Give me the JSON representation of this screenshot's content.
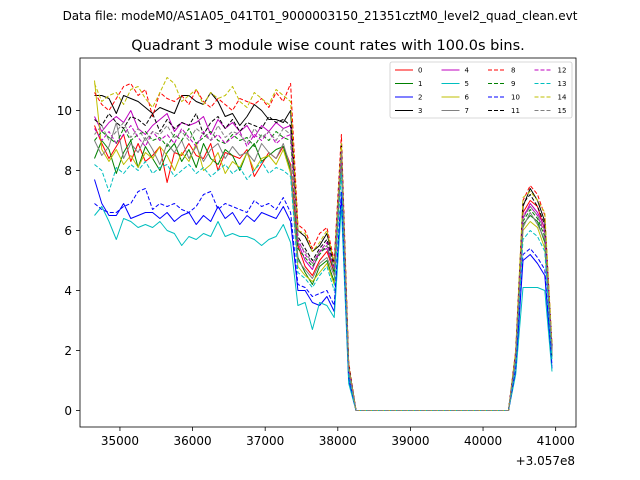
{
  "suptitle": "Data file: modeM0/AS1A05_041T01_9000003150_21351cztM0_level2_quad_clean.evt",
  "chart_data": {
    "type": "line",
    "title": "Quadrant 3 module wise count rates with 100.0s bins.",
    "xlabel": "",
    "ylabel": "",
    "x_offset_label": "+3.057e8",
    "xlim": [
      34450,
      41280
    ],
    "ylim": [
      -0.55,
      11.75
    ],
    "xticks": [
      35000,
      36000,
      37000,
      38000,
      39000,
      40000,
      41000
    ],
    "yticks": [
      0,
      2,
      4,
      6,
      8,
      10
    ],
    "legend_position": "top-right",
    "legend_columns": 4,
    "x": [
      34650,
      34750,
      34850,
      34950,
      35050,
      35150,
      35250,
      35350,
      35450,
      35550,
      35650,
      35750,
      35850,
      35950,
      36050,
      36150,
      36250,
      36350,
      36450,
      36550,
      36650,
      36750,
      36850,
      36950,
      37050,
      37150,
      37250,
      37350,
      37450,
      37550,
      37650,
      37750,
      37850,
      37950,
      38050,
      38150,
      38250,
      38350,
      38450,
      38550,
      38650,
      38750,
      38850,
      38950,
      39050,
      39150,
      39250,
      39350,
      39450,
      39550,
      39650,
      39750,
      39850,
      39950,
      40050,
      40150,
      40250,
      40350,
      40450,
      40550,
      40650,
      40750,
      40850,
      40950
    ],
    "series": [
      {
        "name": "0",
        "color": "#ff0000",
        "dash": false,
        "values": [
          9.5,
          8.9,
          8.4,
          8.8,
          9.2,
          8.3,
          8.9,
          8.3,
          8.5,
          8.8,
          7.6,
          8.6,
          8.5,
          8.9,
          8.5,
          8.4,
          8.9,
          8.0,
          8.6,
          8.5,
          8.4,
          8.7,
          7.8,
          8.2,
          8.6,
          8.4,
          8.8,
          8.2,
          5.5,
          4.8,
          4.5,
          5.0,
          5.3,
          4.6,
          8.8,
          1.4,
          0,
          0,
          0,
          0,
          0,
          0,
          0,
          0,
          0,
          0,
          0,
          0,
          0,
          0,
          0,
          0,
          0,
          0,
          0,
          0,
          0,
          0,
          1.8,
          6.6,
          7.0,
          6.8,
          6.0,
          2.0
        ]
      },
      {
        "name": "1",
        "color": "#008000",
        "dash": false,
        "values": [
          8.4,
          9.0,
          8.7,
          7.9,
          8.6,
          9.0,
          8.1,
          8.8,
          8.4,
          8.0,
          8.6,
          8.9,
          8.3,
          8.7,
          8.1,
          8.9,
          8.4,
          8.2,
          8.7,
          8.5,
          8.0,
          8.6,
          8.9,
          8.3,
          8.5,
          8.7,
          8.8,
          8.0,
          5.1,
          4.6,
          4.2,
          4.8,
          5.0,
          4.3,
          8.4,
          1.3,
          0,
          0,
          0,
          0,
          0,
          0,
          0,
          0,
          0,
          0,
          0,
          0,
          0,
          0,
          0,
          0,
          0,
          0,
          0,
          0,
          0,
          0,
          1.7,
          6.2,
          6.5,
          6.3,
          5.6,
          1.8
        ]
      },
      {
        "name": "2",
        "color": "#0000ff",
        "dash": false,
        "values": [
          7.7,
          6.9,
          6.5,
          6.5,
          6.9,
          6.4,
          6.5,
          6.6,
          6.6,
          6.4,
          6.6,
          6.3,
          6.5,
          6.6,
          6.2,
          6.5,
          6.3,
          6.8,
          6.4,
          6.6,
          6.2,
          6.5,
          6.3,
          6.6,
          6.5,
          6.4,
          6.8,
          6.3,
          4.0,
          4.0,
          3.6,
          3.5,
          3.8,
          3.3,
          7.1,
          1.0,
          0,
          0,
          0,
          0,
          0,
          0,
          0,
          0,
          0,
          0,
          0,
          0,
          0,
          0,
          0,
          0,
          0,
          0,
          0,
          0,
          0,
          0,
          1.3,
          5.0,
          5.2,
          4.9,
          4.5,
          1.4
        ]
      },
      {
        "name": "3",
        "color": "#000000",
        "dash": false,
        "values": [
          10.5,
          10.5,
          10.4,
          9.9,
          10.5,
          10.4,
          10.3,
          10.1,
          9.9,
          10.1,
          10.0,
          9.9,
          10.5,
          10.5,
          10.3,
          10.2,
          10.6,
          10.3,
          9.8,
          9.9,
          9.5,
          9.8,
          10.2,
          10.0,
          9.7,
          9.7,
          9.6,
          10.0,
          6.0,
          5.8,
          5.3,
          5.5,
          5.9,
          4.9,
          8.6,
          1.5,
          0,
          0,
          0,
          0,
          0,
          0,
          0,
          0,
          0,
          0,
          0,
          0,
          0,
          0,
          0,
          0,
          0,
          0,
          0,
          0,
          0,
          0,
          1.9,
          6.8,
          7.4,
          7.0,
          6.3,
          2.1
        ]
      },
      {
        "name": "4",
        "color": "#bf00bf",
        "dash": false,
        "values": [
          9.8,
          9.3,
          9.6,
          9.8,
          9.6,
          10.0,
          9.4,
          9.2,
          9.5,
          9.7,
          9.9,
          9.3,
          9.6,
          9.5,
          9.6,
          9.8,
          9.2,
          9.7,
          9.4,
          9.6,
          9.3,
          9.5,
          9.1,
          9.5,
          9.3,
          9.6,
          9.4,
          9.5,
          5.6,
          5.0,
          4.7,
          5.3,
          5.4,
          4.7,
          8.7,
          1.4,
          0,
          0,
          0,
          0,
          0,
          0,
          0,
          0,
          0,
          0,
          0,
          0,
          0,
          0,
          0,
          0,
          0,
          0,
          0,
          0,
          0,
          0,
          1.9,
          6.4,
          6.9,
          6.6,
          6.1,
          2.0
        ]
      },
      {
        "name": "5",
        "color": "#00bfbf",
        "dash": false,
        "values": [
          6.5,
          6.8,
          6.3,
          5.7,
          6.4,
          6.3,
          6.1,
          6.2,
          6.1,
          6.3,
          6.0,
          5.9,
          5.5,
          5.8,
          5.7,
          5.9,
          5.8,
          6.3,
          5.8,
          5.9,
          5.8,
          5.8,
          5.7,
          5.5,
          5.7,
          5.8,
          6.2,
          5.6,
          3.5,
          3.6,
          2.7,
          3.6,
          3.5,
          3.1,
          6.8,
          0.9,
          0,
          0,
          0,
          0,
          0,
          0,
          0,
          0,
          0,
          0,
          0,
          0,
          0,
          0,
          0,
          0,
          0,
          0,
          0,
          0,
          0,
          0,
          1.2,
          4.1,
          4.1,
          4.1,
          4.0,
          1.3
        ]
      },
      {
        "name": "6",
        "color": "#bfbf00",
        "dash": false,
        "values": [
          11.0,
          8.7,
          8.3,
          8.7,
          8.2,
          8.5,
          8.1,
          8.6,
          8.4,
          8.8,
          8.5,
          8.0,
          8.6,
          8.3,
          8.9,
          8.0,
          8.2,
          8.6,
          7.9,
          8.3,
          8.1,
          8.6,
          8.0,
          8.4,
          8.5,
          8.2,
          8.7,
          7.9,
          4.8,
          4.5,
          4.3,
          4.6,
          4.9,
          4.2,
          8.3,
          1.3,
          0,
          0,
          0,
          0,
          0,
          0,
          0,
          0,
          0,
          0,
          0,
          0,
          0,
          0,
          0,
          0,
          0,
          0,
          0,
          0,
          0,
          0,
          1.7,
          6.0,
          6.3,
          6.1,
          5.4,
          1.9
        ]
      },
      {
        "name": "7",
        "color": "#808080",
        "dash": false,
        "values": [
          9.0,
          8.5,
          8.8,
          9.6,
          8.4,
          8.9,
          8.6,
          9.1,
          8.7,
          8.2,
          8.9,
          8.6,
          9.0,
          8.4,
          8.8,
          8.3,
          8.7,
          8.9,
          8.4,
          8.8,
          8.5,
          8.6,
          8.3,
          8.9,
          8.6,
          8.4,
          8.9,
          8.1,
          5.0,
          4.7,
          4.4,
          4.9,
          5.1,
          4.5,
          8.2,
          1.3,
          0,
          0,
          0,
          0,
          0,
          0,
          0,
          0,
          0,
          0,
          0,
          0,
          0,
          0,
          0,
          0,
          0,
          0,
          0,
          0,
          0,
          0,
          1.8,
          6.1,
          6.6,
          6.2,
          5.7,
          1.9
        ]
      },
      {
        "name": "8",
        "color": "#ff0000",
        "dash": true,
        "values": [
          10.6,
          10.2,
          10.0,
          10.4,
          10.8,
          10.9,
          10.5,
          10.7,
          9.8,
          10.6,
          10.4,
          10.3,
          10.5,
          10.2,
          10.7,
          10.3,
          10.1,
          10.4,
          10.2,
          10.0,
          10.4,
          10.3,
          10.2,
          10.4,
          10.1,
          10.6,
          10.3,
          10.9,
          6.2,
          6.0,
          5.4,
          5.9,
          6.1,
          5.0,
          9.2,
          1.6,
          0,
          0,
          0,
          0,
          0,
          0,
          0,
          0,
          0,
          0,
          0,
          0,
          0,
          0,
          0,
          0,
          0,
          0,
          0,
          0,
          0,
          0,
          2.0,
          7.0,
          7.5,
          7.2,
          6.5,
          2.2
        ]
      },
      {
        "name": "9",
        "color": "#008000",
        "dash": true,
        "values": [
          9.0,
          9.3,
          9.1,
          8.9,
          9.4,
          9.0,
          9.2,
          9.3,
          9.0,
          9.1,
          8.8,
          9.2,
          9.0,
          9.4,
          8.9,
          9.1,
          9.3,
          9.0,
          8.9,
          9.2,
          9.0,
          9.1,
          8.8,
          9.2,
          9.0,
          9.3,
          9.1,
          9.0,
          5.4,
          5.1,
          4.8,
          5.2,
          5.5,
          4.6,
          8.5,
          1.4,
          0,
          0,
          0,
          0,
          0,
          0,
          0,
          0,
          0,
          0,
          0,
          0,
          0,
          0,
          0,
          0,
          0,
          0,
          0,
          0,
          0,
          0,
          1.8,
          6.3,
          6.7,
          6.4,
          5.8,
          2.0
        ]
      },
      {
        "name": "10",
        "color": "#0000ff",
        "dash": true,
        "values": [
          6.9,
          6.7,
          6.6,
          6.6,
          6.8,
          6.9,
          7.3,
          7.4,
          6.7,
          6.9,
          6.8,
          6.9,
          6.7,
          6.6,
          6.8,
          7.2,
          7.3,
          6.7,
          6.9,
          6.8,
          6.7,
          6.6,
          7.0,
          6.8,
          6.9,
          6.7,
          7.1,
          6.6,
          4.2,
          4.1,
          3.8,
          3.9,
          4.0,
          3.5,
          7.3,
          1.1,
          0,
          0,
          0,
          0,
          0,
          0,
          0,
          0,
          0,
          0,
          0,
          0,
          0,
          0,
          0,
          0,
          0,
          0,
          0,
          0,
          0,
          0,
          1.4,
          5.2,
          5.4,
          5.1,
          4.7,
          1.5
        ]
      },
      {
        "name": "11",
        "color": "#000000",
        "dash": true,
        "values": [
          9.7,
          9.5,
          9.9,
          9.6,
          9.4,
          9.8,
          9.7,
          9.5,
          9.9,
          9.3,
          9.7,
          9.4,
          9.6,
          9.5,
          9.9,
          9.2,
          9.6,
          9.8,
          9.4,
          9.7,
          9.3,
          9.6,
          9.5,
          9.4,
          9.8,
          9.6,
          9.7,
          9.5,
          5.8,
          5.4,
          5.0,
          5.4,
          5.7,
          4.8,
          8.9,
          1.5,
          0,
          0,
          0,
          0,
          0,
          0,
          0,
          0,
          0,
          0,
          0,
          0,
          0,
          0,
          0,
          0,
          0,
          0,
          0,
          0,
          0,
          0,
          1.9,
          6.9,
          7.2,
          6.8,
          6.2,
          2.1
        ]
      },
      {
        "name": "12",
        "color": "#bf00bf",
        "dash": true,
        "values": [
          9.4,
          9.0,
          9.3,
          8.9,
          9.2,
          9.5,
          9.1,
          8.8,
          9.3,
          9.0,
          9.2,
          8.9,
          9.4,
          9.1,
          8.8,
          9.3,
          9.0,
          9.2,
          8.9,
          9.1,
          9.3,
          8.8,
          9.2,
          9.0,
          9.3,
          8.9,
          9.1,
          9.2,
          5.7,
          5.2,
          4.9,
          5.3,
          5.6,
          4.7,
          8.7,
          1.4,
          0,
          0,
          0,
          0,
          0,
          0,
          0,
          0,
          0,
          0,
          0,
          0,
          0,
          0,
          0,
          0,
          0,
          0,
          0,
          0,
          0,
          0,
          1.8,
          6.5,
          6.8,
          6.5,
          5.9,
          2.0
        ]
      },
      {
        "name": "13",
        "color": "#00bfbf",
        "dash": true,
        "values": [
          8.2,
          8.0,
          7.3,
          8.1,
          7.9,
          8.2,
          8.0,
          8.3,
          7.9,
          8.1,
          8.2,
          7.8,
          8.0,
          8.2,
          7.9,
          8.1,
          7.8,
          8.0,
          8.2,
          7.9,
          8.1,
          7.7,
          8.0,
          8.3,
          7.9,
          8.1,
          8.0,
          7.8,
          4.6,
          4.4,
          4.1,
          4.5,
          4.8,
          4.0,
          7.9,
          1.2,
          0,
          0,
          0,
          0,
          0,
          0,
          0,
          0,
          0,
          0,
          0,
          0,
          0,
          0,
          0,
          0,
          0,
          0,
          0,
          0,
          0,
          0,
          1.6,
          5.7,
          6.0,
          5.8,
          5.3,
          1.7
        ]
      },
      {
        "name": "14",
        "color": "#bfbf00",
        "dash": true,
        "values": [
          10.9,
          10.3,
          10.5,
          10.6,
          10.2,
          10.7,
          10.8,
          10.4,
          10.1,
          10.6,
          11.1,
          10.9,
          10.3,
          10.5,
          10.7,
          10.2,
          10.6,
          10.4,
          10.5,
          10.8,
          10.3,
          10.1,
          10.6,
          10.4,
          10.2,
          10.7,
          10.5,
          10.3,
          6.0,
          5.9,
          5.3,
          5.6,
          6.0,
          4.9,
          8.9,
          1.5,
          0,
          0,
          0,
          0,
          0,
          0,
          0,
          0,
          0,
          0,
          0,
          0,
          0,
          0,
          0,
          0,
          0,
          0,
          0,
          0,
          0,
          0,
          2.0,
          7.1,
          7.3,
          7.0,
          6.6,
          2.2
        ]
      },
      {
        "name": "15",
        "color": "#808080",
        "dash": true,
        "values": [
          9.2,
          9.5,
          9.0,
          9.3,
          9.6,
          9.1,
          9.4,
          9.0,
          9.3,
          9.2,
          9.5,
          9.1,
          9.3,
          9.0,
          9.4,
          9.2,
          9.0,
          9.5,
          9.1,
          9.3,
          9.2,
          8.9,
          9.4,
          9.1,
          9.3,
          9.0,
          9.4,
          9.2,
          5.6,
          5.3,
          4.9,
          5.3,
          5.5,
          4.7,
          8.6,
          1.4,
          0,
          0,
          0,
          0,
          0,
          0,
          0,
          0,
          0,
          0,
          0,
          0,
          0,
          0,
          0,
          0,
          0,
          0,
          0,
          0,
          0,
          0,
          1.8,
          6.4,
          6.8,
          6.5,
          6.0,
          2.0
        ]
      }
    ]
  }
}
